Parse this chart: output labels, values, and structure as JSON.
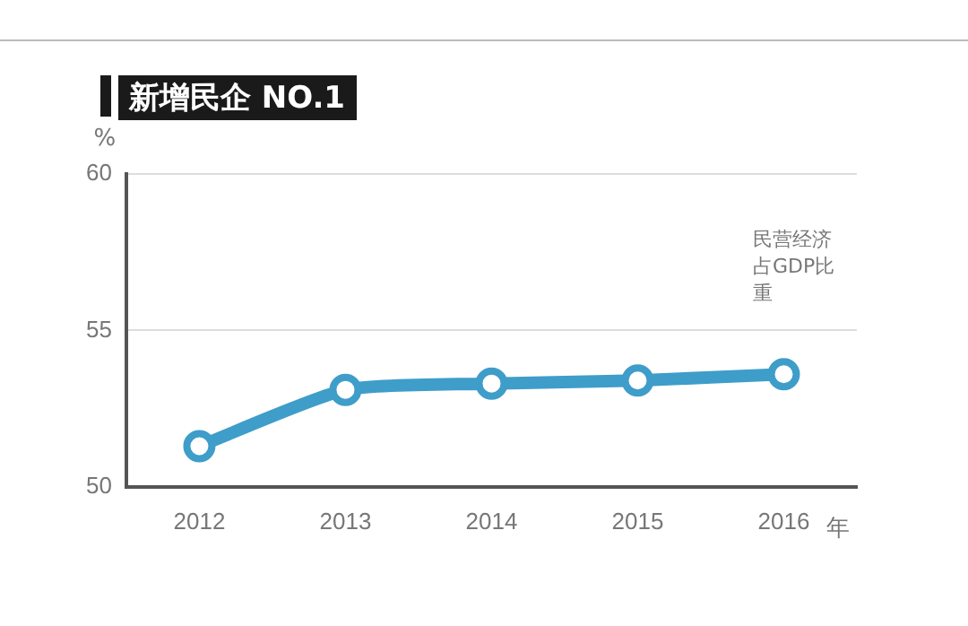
{
  "chart_data": {
    "type": "line",
    "title": "新增民企 NO.1",
    "ylabel": "%",
    "xlabel": "年",
    "annotations": [
      "民营经济占GDP比重"
    ],
    "categories": [
      "2012",
      "2013",
      "2014",
      "2015",
      "2016"
    ],
    "series": [
      {
        "color": "#3f9dc9",
        "values": [
          51.3,
          53.1,
          53.3,
          53.4,
          53.6
        ]
      }
    ],
    "ylim": [
      50,
      60
    ],
    "yticks": [
      50,
      55,
      60
    ],
    "grid": "y",
    "legend": false,
    "marker": "circle",
    "line_style": "solid"
  }
}
